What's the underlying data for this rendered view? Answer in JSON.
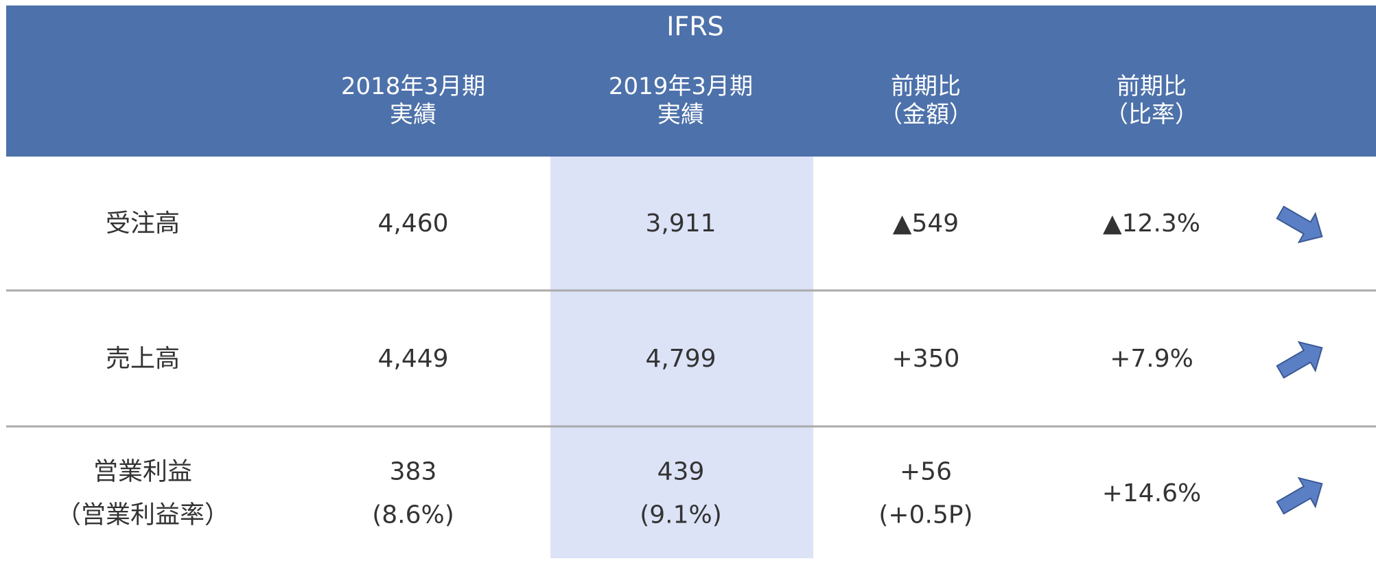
{
  "header": {
    "title": "IFRS",
    "columns": [
      [
        "2018年3月期",
        "実績"
      ],
      [
        "2019年3月期",
        "実績"
      ],
      [
        "前期比",
        "（金額）"
      ],
      [
        "前期比",
        "（比率）"
      ]
    ]
  },
  "rows": [
    {
      "label": [
        "受注高"
      ],
      "cells": [
        [
          "4,460"
        ],
        [
          "3,911"
        ],
        [
          "▲549"
        ],
        [
          "▲12.3%"
        ]
      ]
    },
    {
      "label": [
        "売上高"
      ],
      "cells": [
        [
          "4,449"
        ],
        [
          "4,799"
        ],
        [
          "+350"
        ],
        [
          "+7.9%"
        ]
      ]
    },
    {
      "label": [
        "営業利益",
        "（営業利益率）"
      ],
      "cells": [
        [
          "383",
          "(8.6%)"
        ],
        [
          "439",
          "(9.1%)"
        ],
        [
          "+56",
          "(+0.5P)"
        ],
        [
          "+14.6%"
        ]
      ]
    }
  ]
}
